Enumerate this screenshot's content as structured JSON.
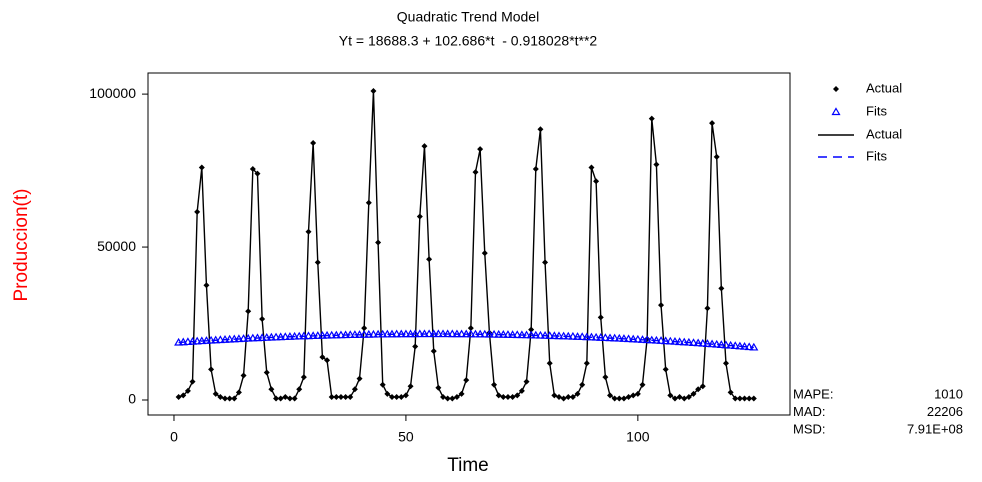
{
  "chart_data": {
    "type": "line",
    "title": "Quadratic Trend Model",
    "subtitle": "Yt = 18688.3 + 102.686*t  - 0.918028*t**2",
    "x_label": "Time",
    "y_label": "Produccion(t)",
    "y_label_color": "#ff0000",
    "x": [
      1,
      2,
      3,
      4,
      5,
      6,
      7,
      8,
      9,
      10,
      11,
      12,
      13,
      14,
      15,
      16,
      17,
      18,
      19,
      20,
      21,
      22,
      23,
      24,
      25,
      26,
      27,
      28,
      29,
      30,
      31,
      32,
      33,
      34,
      35,
      36,
      37,
      38,
      39,
      40,
      41,
      42,
      43,
      44,
      45,
      46,
      47,
      48,
      49,
      50,
      51,
      52,
      53,
      54,
      55,
      56,
      57,
      58,
      59,
      60,
      61,
      62,
      63,
      64,
      65,
      66,
      67,
      68,
      69,
      70,
      71,
      72,
      73,
      74,
      75,
      76,
      77,
      78,
      79,
      80,
      81,
      82,
      83,
      84,
      85,
      86,
      87,
      88,
      89,
      90,
      91,
      92,
      93,
      94,
      95,
      96,
      97,
      98,
      99,
      100,
      101,
      102,
      103,
      104,
      105,
      106,
      107,
      108,
      109,
      110,
      111,
      112,
      113,
      114,
      115,
      116,
      117,
      118,
      119,
      120,
      121,
      122,
      123,
      124,
      125
    ],
    "series": [
      {
        "name": "Actual",
        "color": "#000000",
        "marker": "diamond",
        "line_style": "solid",
        "values": [
          1000,
          1500,
          3000,
          6000,
          61500,
          76000,
          37500,
          10000,
          2000,
          1000,
          500,
          500,
          500,
          2500,
          8000,
          29000,
          75500,
          74000,
          26500,
          9000,
          3500,
          500,
          500,
          1000,
          500,
          500,
          3500,
          7500,
          55000,
          84000,
          45000,
          14000,
          13000,
          1000,
          1000,
          1000,
          1000,
          1000,
          3500,
          7000,
          23500,
          64500,
          101000,
          51500,
          5000,
          2000,
          1000,
          1000,
          1000,
          1500,
          4500,
          17500,
          60000,
          83000,
          46000,
          16000,
          4000,
          1000,
          500,
          500,
          1000,
          2000,
          6500,
          23500,
          74500,
          82000,
          48000,
          22000,
          5000,
          1500,
          1000,
          1000,
          1000,
          1500,
          3000,
          6000,
          23000,
          75500,
          88500,
          45000,
          12000,
          1500,
          1000,
          500,
          1000,
          1000,
          2000,
          5000,
          12000,
          76000,
          71500,
          27000,
          7500,
          1500,
          500,
          500,
          500,
          1000,
          1500,
          2000,
          5000,
          20000,
          92000,
          77000,
          31000,
          10000,
          1500,
          500,
          1000,
          500,
          1000,
          2000,
          3500,
          4500,
          30000,
          90500,
          79500,
          36500,
          12000,
          2500,
          500,
          500,
          500,
          500,
          500
        ]
      },
      {
        "name": "Fits",
        "color": "#0000ff",
        "marker": "triangle",
        "line_style": "dashed",
        "values": [
          18790,
          18890,
          18988,
          19084,
          19179,
          19271,
          19362,
          19451,
          19538,
          19623,
          19707,
          19788,
          19868,
          19946,
          20022,
          20096,
          20169,
          20239,
          20308,
          20375,
          20440,
          20503,
          20565,
          20624,
          20682,
          20738,
          20792,
          20844,
          20894,
          20943,
          20989,
          21034,
          21077,
          21118,
          21158,
          21195,
          21231,
          21265,
          21297,
          21327,
          21355,
          21382,
          21406,
          21429,
          21450,
          21469,
          21487,
          21502,
          21516,
          21528,
          21538,
          21546,
          21552,
          21556,
          21559,
          21560,
          21559,
          21556,
          21551,
          21545,
          21536,
          21526,
          21514,
          21500,
          21484,
          21467,
          21447,
          21426,
          21403,
          21378,
          21351,
          21323,
          21292,
          21260,
          21226,
          21190,
          21152,
          21113,
          21071,
          21028,
          20983,
          20936,
          20887,
          20836,
          20784,
          20730,
          20673,
          20615,
          20556,
          20494,
          20431,
          20365,
          20298,
          20229,
          20158,
          20086,
          20011,
          19935,
          19857,
          19777,
          19695,
          19611,
          19526,
          19438,
          19349,
          19258,
          19165,
          19071,
          18974,
          18876,
          18775,
          18673,
          18570,
          18464,
          18356,
          18247,
          18136,
          18023,
          17908,
          17791,
          17672,
          17552,
          17430,
          17306,
          17180
        ]
      }
    ],
    "xlim": [
      -5.6,
      132.8
    ],
    "ylim": [
      -4900,
      106900
    ],
    "xticks": [
      0,
      50,
      100
    ],
    "yticks": [
      0,
      50000,
      100000
    ],
    "accuracy": [
      {
        "label": "MAPE:",
        "value": 1010
      },
      {
        "label": "MAD:",
        "value": 22206
      },
      {
        "label": "MSD:",
        "value": 791000000,
        "value_label": "7.91E+08"
      }
    ]
  }
}
